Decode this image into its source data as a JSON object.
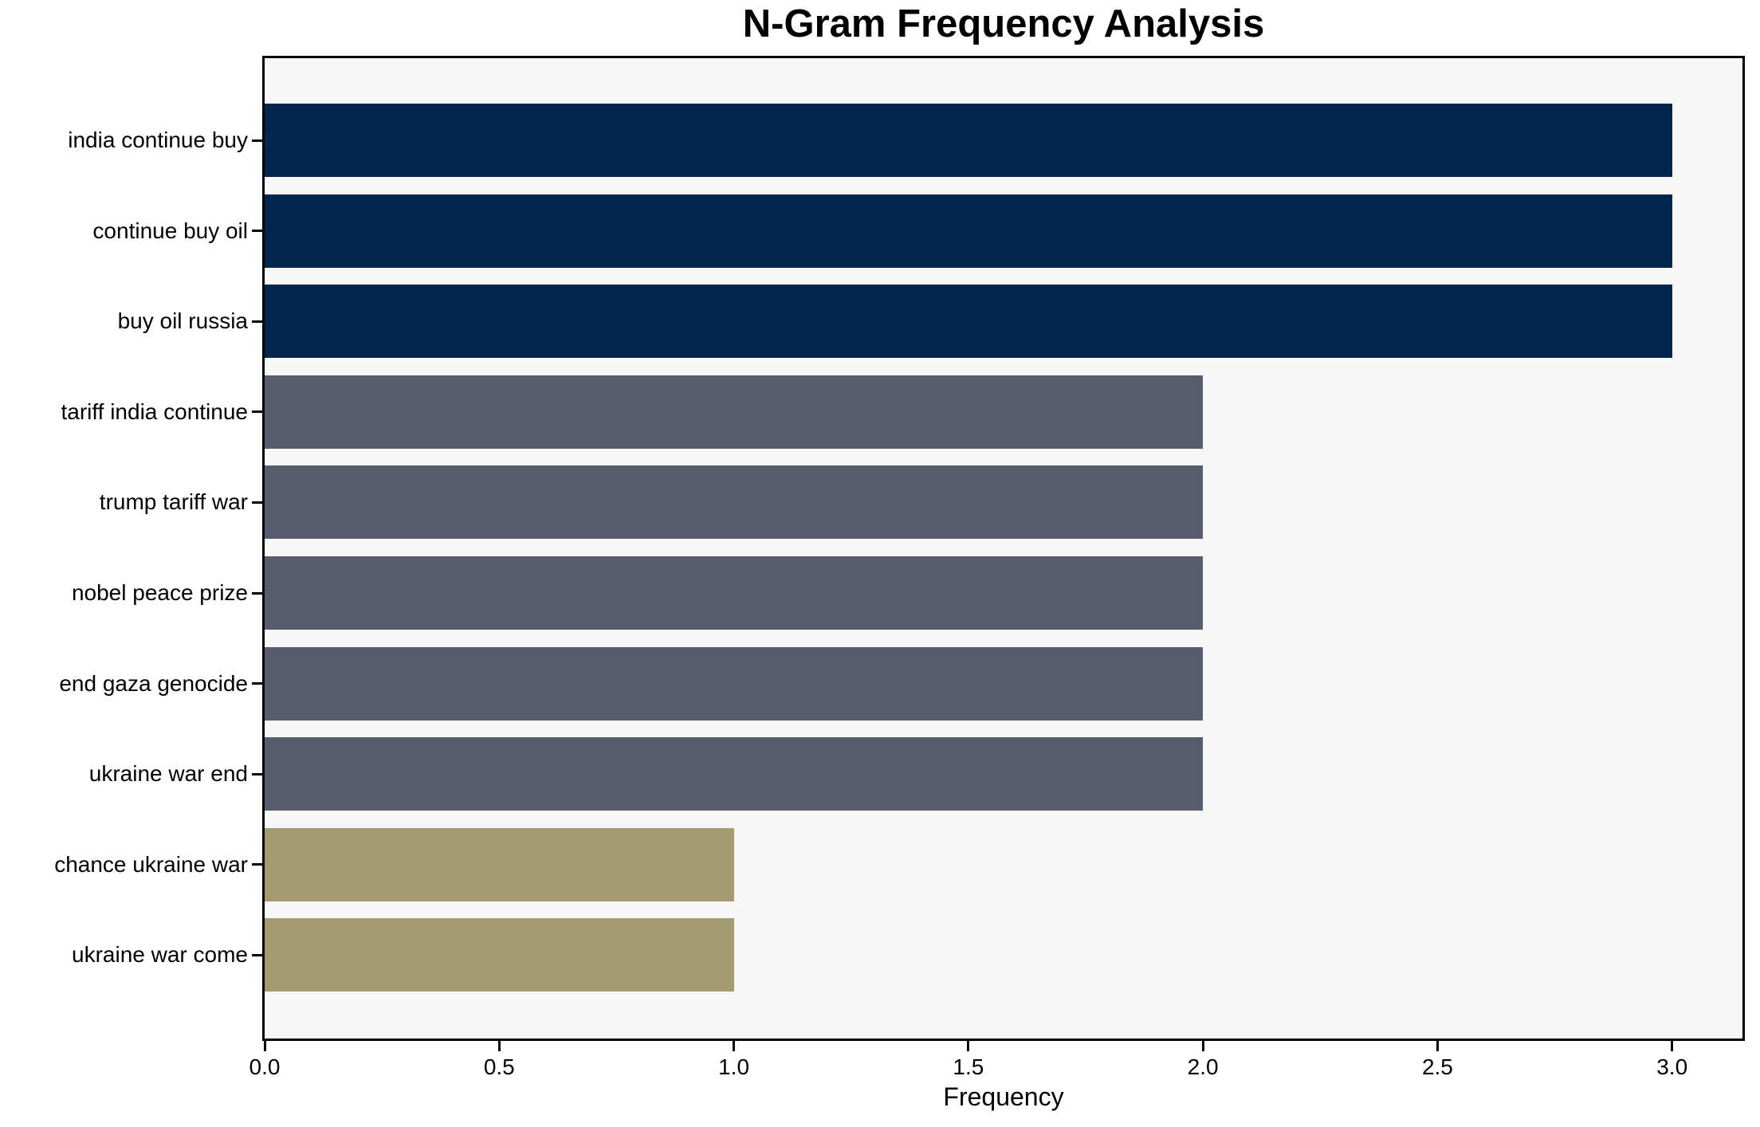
{
  "chart_data": {
    "type": "bar",
    "orientation": "horizontal",
    "title": "N-Gram Frequency Analysis",
    "xlabel": "Frequency",
    "ylabel": "",
    "categories": [
      "india continue buy",
      "continue buy oil",
      "buy oil russia",
      "tariff india continue",
      "trump tariff war",
      "nobel peace prize",
      "end gaza genocide",
      "ukraine war end",
      "chance ukraine war",
      "ukraine war come"
    ],
    "values": [
      3,
      3,
      3,
      2,
      2,
      2,
      2,
      2,
      1,
      1
    ],
    "bar_colors": [
      "#03254e",
      "#03254e",
      "#03254e",
      "#575d6e",
      "#575d6e",
      "#575d6e",
      "#575d6e",
      "#575d6e",
      "#a49b72",
      "#a49b72"
    ],
    "xlim": [
      0,
      3.15
    ],
    "xticks": [
      0.0,
      0.5,
      1.0,
      1.5,
      2.0,
      2.5,
      3.0
    ],
    "xtick_labels": [
      "0.0",
      "0.5",
      "1.0",
      "1.5",
      "2.0",
      "2.5",
      "3.0"
    ],
    "grid": false,
    "legend": "none",
    "plot_background": "#f7f7f8",
    "figure_background": "#ffffff",
    "frame_color": "#000000",
    "text_color": "#000000"
  }
}
